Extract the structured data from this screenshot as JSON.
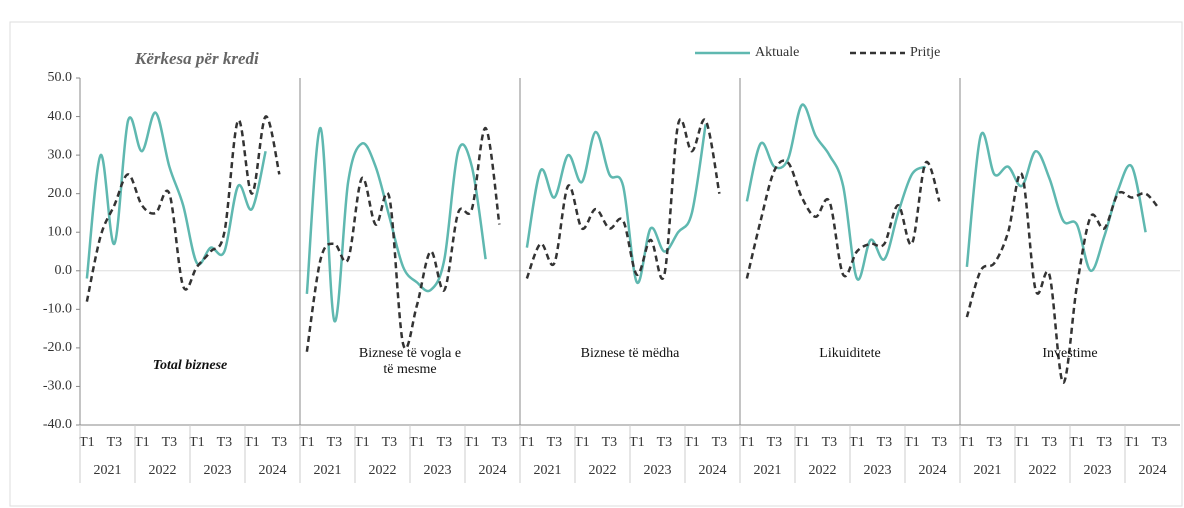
{
  "chart_data": {
    "type": "line",
    "title": "Kërkesa për kredi",
    "panels": [
      "Total biznese",
      "Biznese të vogla e të mesme",
      "Biznese të mëdha",
      "Likuiditete",
      "Investime"
    ],
    "categories": [
      "T1",
      null,
      "T3",
      null,
      "T1",
      null,
      "T3",
      null,
      "T1",
      null,
      "T3",
      null,
      "T1",
      null,
      "T3",
      null
    ],
    "years": [
      "2021",
      "2022",
      "2023",
      "2024"
    ],
    "series": [
      {
        "name": "Aktuale",
        "color": "#5fb8b0",
        "dash": false,
        "values": [
          [
            -2,
            30,
            7,
            39,
            31,
            41,
            27,
            17,
            2,
            6,
            5,
            22,
            16,
            31,
            null,
            null
          ],
          [
            -6,
            37,
            -13,
            23,
            33,
            27,
            14,
            1,
            -3,
            -5,
            3,
            31,
            27,
            3,
            null,
            null
          ],
          [
            6,
            26,
            19,
            30,
            23,
            36,
            25,
            22,
            -3,
            11,
            5,
            10,
            15,
            38,
            null,
            null
          ],
          [
            18,
            33,
            27,
            29,
            43,
            35,
            30,
            22,
            -2,
            8,
            3,
            15,
            25,
            27,
            null,
            null
          ],
          [
            1,
            35,
            25,
            27,
            22,
            31,
            24,
            13,
            12,
            0,
            9,
            21,
            27,
            10,
            null,
            null
          ]
        ]
      },
      {
        "name": "Pritje",
        "color": "#333333",
        "dash": true,
        "values": [
          [
            -8,
            9,
            17,
            25,
            17,
            15,
            20,
            -4,
            1,
            5,
            10,
            39,
            20,
            40,
            25,
            null
          ],
          [
            -21,
            3,
            7,
            3,
            24,
            12,
            19,
            -19,
            -9,
            5,
            -5,
            15,
            16,
            37,
            12,
            null
          ],
          [
            -2,
            7,
            2,
            22,
            11,
            16,
            11,
            13,
            -1,
            8,
            -1,
            38,
            31,
            39,
            20,
            null
          ],
          [
            -2,
            13,
            26,
            28,
            19,
            14,
            18,
            -1,
            5,
            7,
            7,
            17,
            7,
            28,
            18,
            null
          ],
          [
            -12,
            0,
            2,
            10,
            25,
            -5,
            -1,
            -29,
            -4,
            14,
            11,
            20,
            19,
            20,
            16,
            null
          ]
        ]
      }
    ],
    "ylim": [
      -40,
      50
    ],
    "yticks": [
      {
        "value": -40,
        "label": "-40.0"
      },
      {
        "value": -30,
        "label": "-30.0"
      },
      {
        "value": -20,
        "label": "-20.0"
      },
      {
        "value": -10,
        "label": "-10.0"
      },
      {
        "value": 0,
        "label": "0.0"
      },
      {
        "value": 10,
        "label": "10.0"
      },
      {
        "value": 20,
        "label": "20.0"
      },
      {
        "value": 30,
        "label": "30.0"
      },
      {
        "value": 40,
        "label": "40.0"
      },
      {
        "value": 50,
        "label": "50.0"
      }
    ]
  }
}
